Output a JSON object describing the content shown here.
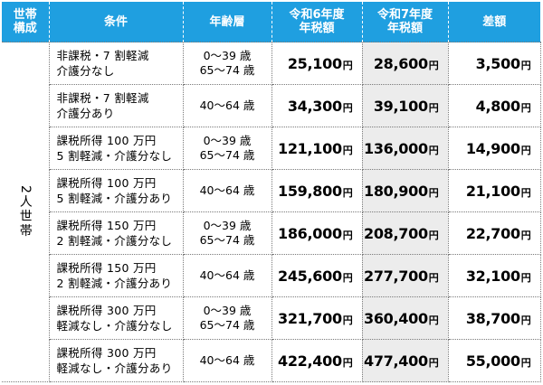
{
  "headers": {
    "household": [
      "世帯",
      "構成"
    ],
    "condition": "条件",
    "age": "年齢層",
    "r6": [
      "令和6年度",
      "年税額"
    ],
    "r7": [
      "令和7年度",
      "年税額"
    ],
    "diff": "差額"
  },
  "household_label": "2人世帯",
  "yen_unit": "円",
  "rows": [
    {
      "cond": [
        "非課税・7 割軽減",
        "介護分なし"
      ],
      "age": [
        "0〜39 歳",
        "65〜74 歳"
      ],
      "r6": "25,100",
      "r7": "28,600",
      "diff": "3,500"
    },
    {
      "cond": [
        "非課税・7 割軽減",
        "介護分あり"
      ],
      "age": [
        "40〜64 歳"
      ],
      "r6": "34,300",
      "r7": "39,100",
      "diff": "4,800"
    },
    {
      "cond": [
        "課税所得 100 万円",
        "5 割軽減・介護分なし"
      ],
      "age": [
        "0〜39 歳",
        "65〜74 歳"
      ],
      "r6": "121,100",
      "r7": "136,000",
      "diff": "14,900"
    },
    {
      "cond": [
        "課税所得 100 万円",
        "5 割軽減・介護分あり"
      ],
      "age": [
        "40〜64 歳"
      ],
      "r6": "159,800",
      "r7": "180,900",
      "diff": "21,100"
    },
    {
      "cond": [
        "課税所得 150 万円",
        "2 割軽減・介護分なし"
      ],
      "age": [
        "0〜39 歳",
        "65〜74 歳"
      ],
      "r6": "186,000",
      "r7": "208,700",
      "diff": "22,700"
    },
    {
      "cond": [
        "課税所得 150 万円",
        "2 割軽減・介護分あり"
      ],
      "age": [
        "40〜64 歳"
      ],
      "r6": "245,600",
      "r7": "277,700",
      "diff": "32,100"
    },
    {
      "cond": [
        "課税所得 300 万円",
        "軽減なし・介護分なし"
      ],
      "age": [
        "0〜39 歳",
        "65〜74 歳"
      ],
      "r6": "321,700",
      "r7": "360,400",
      "diff": "38,700"
    },
    {
      "cond": [
        "課税所得 300 万円",
        "軽減なし・介護分あり"
      ],
      "age": [
        "40〜64 歳"
      ],
      "r6": "422,400",
      "r7": "477,400",
      "diff": "55,000"
    }
  ]
}
